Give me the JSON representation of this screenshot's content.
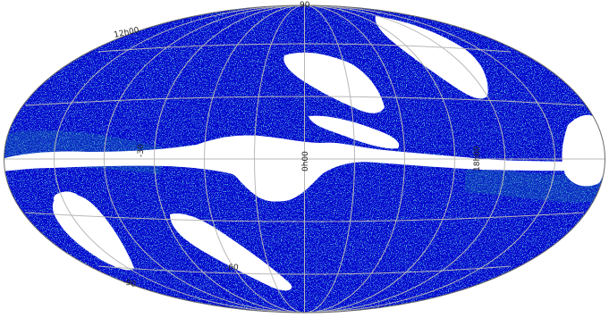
{
  "map": {
    "projection": "aitoff-hammer",
    "colors": {
      "background": "#ffffff",
      "density_high": "#0000cc",
      "density_mid": "#2a3df0",
      "density_low": "#1a9aa0",
      "grid": "#b8b8b8",
      "outline": "#6a6a6a"
    },
    "labels": {
      "north_pole": "90",
      "ra_upper_left": "12h00",
      "center_ra": "0h00",
      "right_ra": "18h00",
      "left_dec": "-30",
      "lower_dec": "-60",
      "lower_left_dec": "-90"
    }
  }
}
